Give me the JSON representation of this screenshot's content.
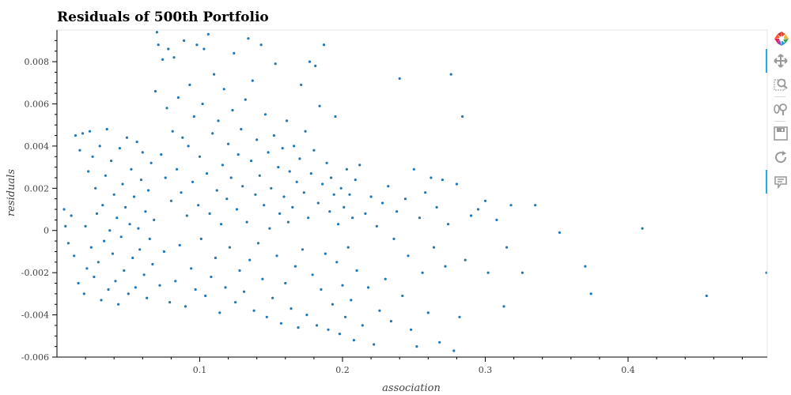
{
  "title": "Residuals of 500th Portfolio",
  "toolbar": {
    "tools": [
      {
        "name": "bokeh-logo-icon",
        "active": false
      },
      {
        "name": "pan-icon",
        "active": true
      },
      {
        "name": "box-zoom-icon",
        "active": false
      },
      {
        "name": "wheel-zoom-icon",
        "active": false
      },
      {
        "name": "save-icon",
        "active": false
      },
      {
        "name": "reset-icon",
        "active": false
      },
      {
        "name": "hover-icon",
        "active": true
      }
    ]
  },
  "chart_data": {
    "type": "scatter",
    "title": "Residuals of 500th Portfolio",
    "xlabel": "association",
    "ylabel": "residuals",
    "xlim": [
      0.0,
      0.4975
    ],
    "ylim": [
      -0.006,
      0.0095
    ],
    "xticks": [
      0.1,
      0.2,
      0.3,
      0.4
    ],
    "xtick_labels": [
      "0.1",
      "0.2",
      "0.3",
      "0.4"
    ],
    "yticks": [
      -0.006,
      -0.004,
      -0.002,
      0,
      0.002,
      0.004,
      0.006,
      0.008
    ],
    "ytick_labels": [
      "-0.006",
      "-0.004",
      "-0.002",
      "0",
      "0.002",
      "0.004",
      "0.006",
      "0.008"
    ],
    "grid": false,
    "marker_color": "#1f77b4",
    "series": [
      {
        "points": [
          [
            0.005,
            0.001
          ],
          [
            0.006,
            0.0002
          ],
          [
            0.008,
            -0.0006
          ],
          [
            0.01,
            0.0007
          ],
          [
            0.012,
            -0.0012
          ],
          [
            0.013,
            0.0045
          ],
          [
            0.015,
            -0.0025
          ],
          [
            0.016,
            0.0038
          ],
          [
            0.018,
            0.0046
          ],
          [
            0.019,
            -0.003
          ],
          [
            0.02,
            0.0002
          ],
          [
            0.021,
            -0.0018
          ],
          [
            0.022,
            0.0028
          ],
          [
            0.023,
            0.0047
          ],
          [
            0.024,
            -0.0008
          ],
          [
            0.025,
            0.0035
          ],
          [
            0.026,
            -0.0022
          ],
          [
            0.027,
            0.002
          ],
          [
            0.028,
            0.0008
          ],
          [
            0.029,
            -0.0015
          ],
          [
            0.03,
            0.004
          ],
          [
            0.031,
            -0.0033
          ],
          [
            0.032,
            0.0012
          ],
          [
            0.033,
            -0.0005
          ],
          [
            0.034,
            0.0026
          ],
          [
            0.035,
            0.0048
          ],
          [
            0.036,
            -0.0028
          ],
          [
            0.037,
            0.0
          ],
          [
            0.038,
            0.0033
          ],
          [
            0.039,
            -0.0011
          ],
          [
            0.04,
            0.0017
          ],
          [
            0.041,
            -0.0024
          ],
          [
            0.042,
            0.0006
          ],
          [
            0.043,
            -0.0035
          ],
          [
            0.044,
            0.0039
          ],
          [
            0.045,
            -0.0003
          ],
          [
            0.046,
            0.0022
          ],
          [
            0.047,
            -0.0019
          ],
          [
            0.048,
            0.0011
          ],
          [
            0.049,
            0.0044
          ],
          [
            0.05,
            -0.003
          ],
          [
            0.051,
            0.0003
          ],
          [
            0.052,
            0.0029
          ],
          [
            0.053,
            -0.0013
          ],
          [
            0.054,
            0.0016
          ],
          [
            0.055,
            -0.0027
          ],
          [
            0.056,
            0.0042
          ],
          [
            0.057,
            0.0001
          ],
          [
            0.058,
            -0.0009
          ],
          [
            0.059,
            0.0024
          ],
          [
            0.06,
            0.0037
          ],
          [
            0.061,
            -0.0021
          ],
          [
            0.062,
            0.0009
          ],
          [
            0.063,
            -0.0032
          ],
          [
            0.064,
            0.0019
          ],
          [
            0.065,
            -0.0004
          ],
          [
            0.066,
            0.0032
          ],
          [
            0.067,
            -0.0016
          ],
          [
            0.068,
            0.0005
          ],
          [
            0.069,
            0.0066
          ],
          [
            0.07,
            0.0094
          ],
          [
            0.071,
            0.0088
          ],
          [
            0.072,
            -0.0026
          ],
          [
            0.073,
            0.0036
          ],
          [
            0.074,
            0.0081
          ],
          [
            0.075,
            -0.001
          ],
          [
            0.076,
            0.0025
          ],
          [
            0.077,
            0.0058
          ],
          [
            0.078,
            0.0086
          ],
          [
            0.079,
            -0.0034
          ],
          [
            0.08,
            0.0014
          ],
          [
            0.081,
            0.0047
          ],
          [
            0.082,
            0.0082
          ],
          [
            0.083,
            -0.0024
          ],
          [
            0.084,
            0.0029
          ],
          [
            0.085,
            0.0063
          ],
          [
            0.086,
            -0.0007
          ],
          [
            0.087,
            0.0018
          ],
          [
            0.088,
            0.0044
          ],
          [
            0.089,
            0.009
          ],
          [
            0.09,
            -0.0036
          ],
          [
            0.091,
            0.0007
          ],
          [
            0.092,
            0.004
          ],
          [
            0.093,
            0.0069
          ],
          [
            0.094,
            -0.0018
          ],
          [
            0.095,
            0.0023
          ],
          [
            0.096,
            0.0054
          ],
          [
            0.097,
            -0.0028
          ],
          [
            0.098,
            0.0088
          ],
          [
            0.099,
            0.0012
          ],
          [
            0.1,
            0.0035
          ],
          [
            0.101,
            -0.0004
          ],
          [
            0.102,
            0.006
          ],
          [
            0.103,
            0.0086
          ],
          [
            0.104,
            -0.0031
          ],
          [
            0.105,
            0.0027
          ],
          [
            0.106,
            0.0093
          ],
          [
            0.107,
            0.0008
          ],
          [
            0.108,
            -0.0022
          ],
          [
            0.109,
            0.0046
          ],
          [
            0.11,
            0.0074
          ],
          [
            0.111,
            -0.0013
          ],
          [
            0.112,
            0.0019
          ],
          [
            0.113,
            0.0052
          ],
          [
            0.114,
            -0.0039
          ],
          [
            0.115,
            0.0003
          ],
          [
            0.116,
            0.0031
          ],
          [
            0.117,
            0.0067
          ],
          [
            0.118,
            -0.0027
          ],
          [
            0.119,
            0.0015
          ],
          [
            0.12,
            0.0041
          ],
          [
            0.121,
            -0.0008
          ],
          [
            0.122,
            0.0025
          ],
          [
            0.123,
            0.0057
          ],
          [
            0.124,
            0.0084
          ],
          [
            0.125,
            -0.0034
          ],
          [
            0.126,
            0.001
          ],
          [
            0.127,
            0.0036
          ],
          [
            0.128,
            -0.0019
          ],
          [
            0.129,
            0.0048
          ],
          [
            0.13,
            0.0021
          ],
          [
            0.131,
            -0.0029
          ],
          [
            0.132,
            0.0062
          ],
          [
            0.133,
            0.0004
          ],
          [
            0.134,
            0.0091
          ],
          [
            0.135,
            -0.0014
          ],
          [
            0.136,
            0.0033
          ],
          [
            0.137,
            0.0071
          ],
          [
            0.138,
            -0.0038
          ],
          [
            0.139,
            0.0017
          ],
          [
            0.14,
            0.0043
          ],
          [
            0.141,
            -0.0006
          ],
          [
            0.142,
            0.0026
          ],
          [
            0.143,
            0.0088
          ],
          [
            0.144,
            -0.0023
          ],
          [
            0.145,
            0.0012
          ],
          [
            0.146,
            0.0055
          ],
          [
            0.147,
            -0.0041
          ],
          [
            0.148,
            0.0037
          ],
          [
            0.149,
            0.0001
          ],
          [
            0.15,
            0.002
          ],
          [
            0.151,
            -0.0032
          ],
          [
            0.152,
            0.0045
          ],
          [
            0.153,
            0.0079
          ],
          [
            0.154,
            -0.0012
          ],
          [
            0.155,
            0.003
          ],
          [
            0.156,
            0.0008
          ],
          [
            0.157,
            -0.0044
          ],
          [
            0.158,
            0.0039
          ],
          [
            0.159,
            0.0016
          ],
          [
            0.16,
            -0.0025
          ],
          [
            0.161,
            0.0052
          ],
          [
            0.162,
            0.0004
          ],
          [
            0.163,
            0.0028
          ],
          [
            0.164,
            -0.0037
          ],
          [
            0.165,
            0.0011
          ],
          [
            0.166,
            0.004
          ],
          [
            0.167,
            -0.0017
          ],
          [
            0.168,
            0.0023
          ],
          [
            0.169,
            -0.0046
          ],
          [
            0.17,
            0.0034
          ],
          [
            0.171,
            0.0069
          ],
          [
            0.172,
            -0.0009
          ],
          [
            0.173,
            0.0018
          ],
          [
            0.174,
            0.0047
          ],
          [
            0.175,
            -0.004
          ],
          [
            0.176,
            0.0006
          ],
          [
            0.177,
            0.008
          ],
          [
            0.178,
            0.0027
          ],
          [
            0.179,
            -0.0021
          ],
          [
            0.18,
            0.0038
          ],
          [
            0.181,
            0.0078
          ],
          [
            0.182,
            -0.0045
          ],
          [
            0.183,
            0.0013
          ],
          [
            0.184,
            0.0059
          ],
          [
            0.185,
            -0.0028
          ],
          [
            0.186,
            0.0022
          ],
          [
            0.187,
            0.0088
          ],
          [
            0.188,
            -0.0011
          ],
          [
            0.189,
            0.0032
          ],
          [
            0.19,
            -0.0047
          ],
          [
            0.191,
            0.0009
          ],
          [
            0.192,
            0.0025
          ],
          [
            0.193,
            -0.0035
          ],
          [
            0.194,
            0.0017
          ],
          [
            0.195,
            0.0054
          ],
          [
            0.196,
            -0.0015
          ],
          [
            0.197,
            0.0003
          ],
          [
            0.198,
            -0.0049
          ],
          [
            0.199,
            0.002
          ],
          [
            0.2,
            -0.0026
          ],
          [
            0.201,
            0.0011
          ],
          [
            0.202,
            -0.0041
          ],
          [
            0.203,
            0.0029
          ],
          [
            0.204,
            -0.0008
          ],
          [
            0.205,
            0.0017
          ],
          [
            0.206,
            -0.0033
          ],
          [
            0.207,
            0.0006
          ],
          [
            0.208,
            -0.0052
          ],
          [
            0.209,
            0.0024
          ],
          [
            0.21,
            -0.0019
          ],
          [
            0.212,
            0.0031
          ],
          [
            0.214,
            -0.0045
          ],
          [
            0.216,
            0.0008
          ],
          [
            0.218,
            -0.0027
          ],
          [
            0.22,
            0.0016
          ],
          [
            0.222,
            -0.0054
          ],
          [
            0.224,
            0.0002
          ],
          [
            0.226,
            -0.0038
          ],
          [
            0.228,
            0.0013
          ],
          [
            0.23,
            -0.0023
          ],
          [
            0.232,
            0.0021
          ],
          [
            0.234,
            -0.0043
          ],
          [
            0.236,
            -0.0004
          ],
          [
            0.238,
            0.0009
          ],
          [
            0.24,
            0.0072
          ],
          [
            0.242,
            -0.0031
          ],
          [
            0.244,
            0.0015
          ],
          [
            0.246,
            -0.0012
          ],
          [
            0.248,
            -0.0047
          ],
          [
            0.25,
            0.0029
          ],
          [
            0.252,
            -0.0055
          ],
          [
            0.254,
            0.0006
          ],
          [
            0.256,
            -0.002
          ],
          [
            0.258,
            0.0018
          ],
          [
            0.26,
            -0.0039
          ],
          [
            0.262,
            0.0025
          ],
          [
            0.264,
            -0.0008
          ],
          [
            0.266,
            0.0011
          ],
          [
            0.268,
            -0.0053
          ],
          [
            0.27,
            0.0024
          ],
          [
            0.272,
            -0.0017
          ],
          [
            0.274,
            0.0003
          ],
          [
            0.276,
            0.0074
          ],
          [
            0.278,
            -0.0057
          ],
          [
            0.28,
            0.0022
          ],
          [
            0.282,
            -0.0041
          ],
          [
            0.284,
            0.0054
          ],
          [
            0.286,
            -0.0014
          ],
          [
            0.29,
            0.0007
          ],
          [
            0.295,
            0.001
          ],
          [
            0.3,
            0.0014
          ],
          [
            0.302,
            -0.002
          ],
          [
            0.308,
            0.0005
          ],
          [
            0.313,
            -0.0036
          ],
          [
            0.315,
            -0.0008
          ],
          [
            0.318,
            0.0012
          ],
          [
            0.326,
            -0.002
          ],
          [
            0.335,
            0.0012
          ],
          [
            0.352,
            -0.0001
          ],
          [
            0.37,
            -0.0017
          ],
          [
            0.374,
            -0.003
          ],
          [
            0.41,
            0.0001
          ],
          [
            0.455,
            -0.0031
          ],
          [
            0.497,
            -0.002
          ]
        ]
      }
    ]
  }
}
